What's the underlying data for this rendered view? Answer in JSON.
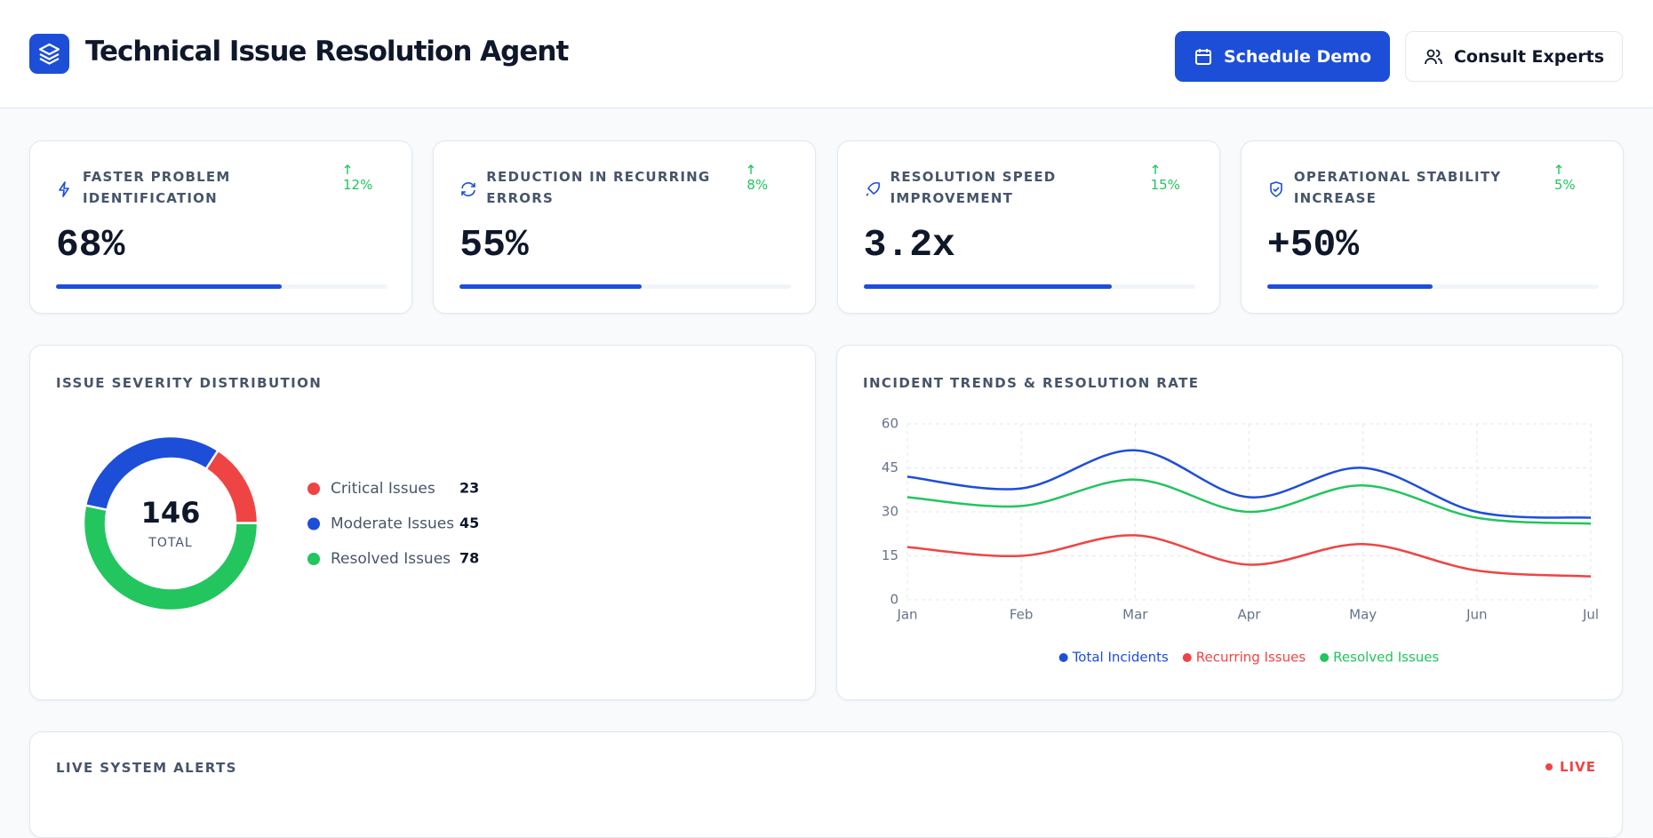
{
  "header": {
    "title": "Technical Issue Resolution Agent",
    "buttons": [
      "Schedule Demo",
      "Consult Experts"
    ]
  },
  "kpis": [
    {
      "label": "FASTER PROBLEM IDENTIFICATION",
      "value": "68%",
      "change": "12%",
      "progress": 68
    },
    {
      "label": "REDUCTION IN RECURRING ERRORS",
      "value": "55%",
      "change": "8%",
      "progress": 55
    },
    {
      "label": "RESOLUTION SPEED IMPROVEMENT",
      "value": "3.2x",
      "change": "15%",
      "progress": 75
    },
    {
      "label": "OPERATIONAL STABILITY INCREASE",
      "value": "+50%",
      "change": "5%",
      "progress": 50
    }
  ],
  "chart_data": [
    {
      "type": "donut",
      "title": "ISSUE SEVERITY DISTRIBUTION",
      "categories": [
        "Critical Issues",
        "Moderate Issues",
        "Resolved Issues"
      ],
      "values": [
        23,
        45,
        78
      ],
      "colors": [
        "#ef4444",
        "#1d4ed8",
        "#22c55e"
      ],
      "order": [
        0,
        2,
        1
      ],
      "center_value": 146,
      "center_label": "TOTAL"
    },
    {
      "type": "line",
      "title": "INCIDENT TRENDS & RESOLUTION RATE",
      "categories": [
        "Jan",
        "Feb",
        "Mar",
        "Apr",
        "May",
        "Jun",
        "Jul"
      ],
      "series": [
        {
          "name": "Total Incidents",
          "color": "#1d4ed8",
          "values": [
            42,
            38,
            51,
            35,
            45,
            30,
            28
          ]
        },
        {
          "name": "Recurring Issues",
          "color": "#ef4444",
          "values": [
            18,
            15,
            22,
            12,
            19,
            10,
            8
          ]
        },
        {
          "name": "Resolved Issues",
          "color": "#22c55e",
          "values": [
            35,
            32,
            41,
            30,
            39,
            28,
            26
          ]
        }
      ],
      "ylim": [
        0,
        60
      ],
      "yticks": [
        0,
        15,
        30,
        45,
        60
      ],
      "grid": true,
      "legend": "bottom"
    }
  ],
  "alerts": {
    "title": "LIVE SYSTEM ALERTS",
    "status": "LIVE"
  }
}
